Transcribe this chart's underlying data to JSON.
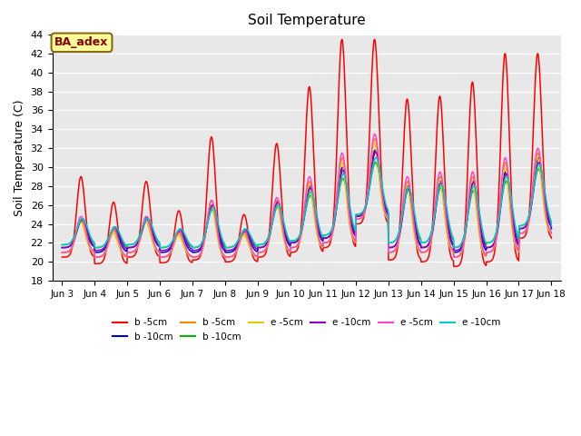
{
  "title": "Soil Temperature",
  "ylabel": "Soil Temperature (C)",
  "ylim": [
    18,
    44
  ],
  "yticks": [
    18,
    20,
    22,
    24,
    26,
    28,
    30,
    32,
    34,
    36,
    38,
    40,
    42,
    44
  ],
  "bg_color": "#e8e8e8",
  "annotation_text": "BA_adex",
  "annotation_bg": "#ffff99",
  "annotation_border": "#8b6914",
  "annotation_text_color": "#8b0000",
  "series": [
    {
      "label": "b -5cm",
      "color": "#ff0000"
    },
    {
      "label": "b -10cm",
      "color": "#0000cc"
    },
    {
      "label": "b -5cm",
      "color": "#ff8800"
    },
    {
      "label": "b -10cm",
      "color": "#00bb00"
    },
    {
      "label": "e -5cm",
      "color": "#ddcc00"
    },
    {
      "label": "e -10cm",
      "color": "#8800bb"
    },
    {
      "label": "e -5cm",
      "color": "#ff44cc"
    },
    {
      "label": "e -10cm",
      "color": "#00cccc"
    }
  ],
  "x_tick_labels": [
    "Jun 3",
    "Jun 4",
    "Jun 5",
    "Jun 6",
    "Jun 7",
    "Jun 8",
    "Jun 9",
    "Jun 10",
    "Jun 11",
    "Jun 12",
    "Jun 13",
    "Jun 14",
    "Jun 15",
    "Jun 16",
    "Jun 17",
    "Jun 18"
  ]
}
